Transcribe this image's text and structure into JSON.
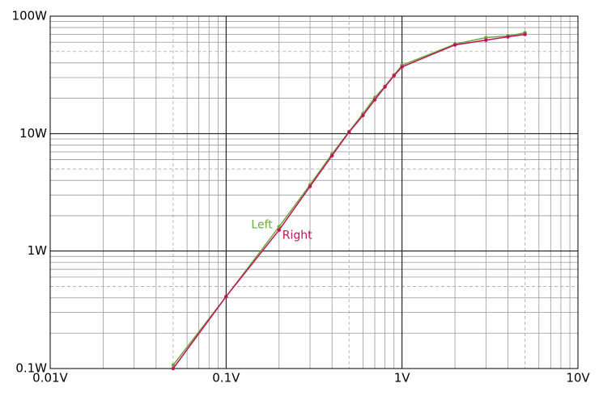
{
  "chart_data": {
    "type": "line",
    "x": [
      0.05,
      0.1,
      0.2,
      0.3,
      0.4,
      0.5,
      0.6,
      0.7,
      0.8,
      0.9,
      1,
      2,
      3,
      4,
      5
    ],
    "series": [
      {
        "name": "Left",
        "color": "#6aaa3a",
        "values": [
          0.107,
          0.41,
          1.61,
          3.67,
          6.7,
          10.4,
          14.8,
          20.3,
          25.3,
          31.6,
          38.2,
          57.8,
          65.7,
          67.8,
          72.3
        ]
      },
      {
        "name": "Right",
        "color": "#c0145a",
        "values": [
          0.1,
          0.41,
          1.51,
          3.55,
          6.49,
          10.3,
          14.3,
          19.4,
          25,
          31.1,
          37,
          56.9,
          62.5,
          66.7,
          69.9
        ]
      }
    ],
    "xlim": [
      0.01,
      10
    ],
    "ylim": [
      0.1,
      100
    ],
    "xticks": [
      {
        "value": 0.01,
        "label": "0.01V"
      },
      {
        "value": 0.1,
        "label": "0.1V"
      },
      {
        "value": 1,
        "label": "1V"
      },
      {
        "value": 10,
        "label": "10V"
      }
    ],
    "yticks": [
      {
        "value": 0.1,
        "label": "0.1W"
      },
      {
        "value": 1,
        "label": "1W"
      },
      {
        "value": 10,
        "label": "10W"
      },
      {
        "value": 100,
        "label": "100W"
      }
    ],
    "xlog": true,
    "ylog": true,
    "grid": true,
    "minor_grid": true
  }
}
